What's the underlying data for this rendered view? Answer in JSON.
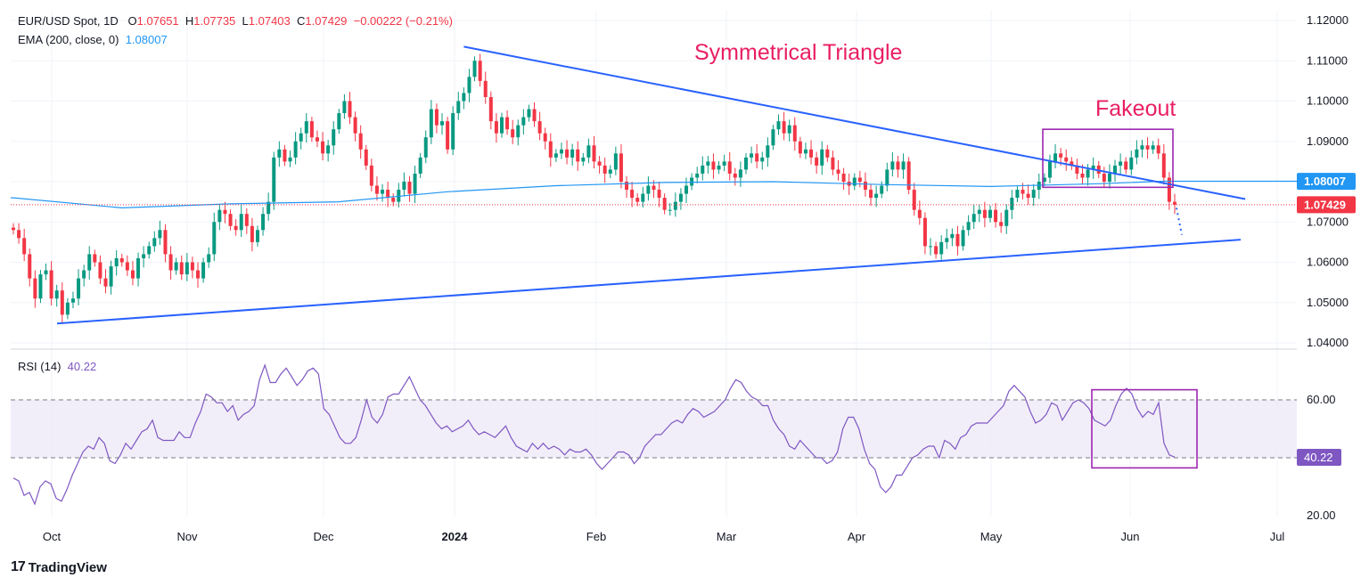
{
  "header": {
    "symbol": "EUR/USD Spot, 1D",
    "o_label": "O",
    "o": "1.07651",
    "h_label": "H",
    "h": "1.07735",
    "l_label": "L",
    "l": "1.07403",
    "c_label": "C",
    "c": "1.07429",
    "change": "−0.00222 (−0.21%)",
    "ema_label": "EMA (200, close, 0)",
    "ema_value": "1.08007",
    "rsi_label": "RSI (14)",
    "rsi_value": "40.22"
  },
  "annotations": {
    "triangle": "Symmetrical Triangle",
    "fakeout": "Fakeout"
  },
  "brand": {
    "name": "TradingView"
  },
  "colors": {
    "up": "#089981",
    "down": "#f23645",
    "ema": "#2196f3",
    "trendline": "#2962ff",
    "annotation": "#e91e63",
    "box": "#9c27b0",
    "rsi": "#7e57c2",
    "rsi_band": "#ede7f6"
  },
  "chart_data": [
    {
      "type": "candlestick",
      "title": "EUR/USD Spot, 1D",
      "ylim": [
        1.035,
        1.12
      ],
      "y_ticks": [
        "1.04000",
        "1.05000",
        "1.06000",
        "1.07000",
        "1.08000",
        "1.09000",
        "1.10000",
        "1.11000",
        "1.12000"
      ],
      "x_ticks": [
        "Oct",
        "Nov",
        "Dec",
        "2024",
        "Feb",
        "Mar",
        "Apr",
        "May",
        "Jun",
        "Jul"
      ],
      "price_tag": "1.07429",
      "ema_tag": "1.08007",
      "ema_anchors": [
        [
          0,
          1.076
        ],
        [
          20,
          1.0735
        ],
        [
          40,
          1.0745
        ],
        [
          60,
          1.075
        ],
        [
          80,
          1.0775
        ],
        [
          100,
          1.079
        ],
        [
          120,
          1.0798
        ],
        [
          140,
          1.08
        ],
        [
          160,
          1.0793
        ],
        [
          180,
          1.0788
        ],
        [
          200,
          1.0795
        ],
        [
          212,
          1.0801
        ]
      ],
      "trendlines": [
        {
          "name": "upper",
          "from": [
            83,
            1.1135
          ],
          "to": [
            227,
            1.0757
          ]
        },
        {
          "name": "lower",
          "from": [
            0,
            1.0448
          ],
          "to": [
            225,
            1.0656
          ]
        }
      ],
      "closes": [
        1.068,
        1.066,
        1.062,
        1.056,
        1.051,
        1.057,
        1.058,
        1.051,
        1.053,
        1.047,
        1.05,
        1.051,
        1.056,
        1.058,
        1.062,
        1.06,
        1.056,
        1.054,
        1.059,
        1.061,
        1.06,
        1.058,
        1.056,
        1.061,
        1.062,
        1.064,
        1.066,
        1.068,
        1.062,
        1.058,
        1.06,
        1.057,
        1.06,
        1.058,
        1.056,
        1.06,
        1.062,
        1.07,
        1.073,
        1.072,
        1.069,
        1.068,
        1.072,
        1.069,
        1.065,
        1.068,
        1.072,
        1.075,
        1.086,
        1.088,
        1.085,
        1.086,
        1.09,
        1.092,
        1.095,
        1.091,
        1.09,
        1.087,
        1.089,
        1.093,
        1.097,
        1.1,
        1.096,
        1.092,
        1.088,
        1.084,
        1.079,
        1.077,
        1.078,
        1.076,
        1.075,
        1.078,
        1.08,
        1.077,
        1.082,
        1.086,
        1.091,
        1.098,
        1.094,
        1.095,
        1.088,
        1.097,
        1.1,
        1.102,
        1.106,
        1.11,
        1.105,
        1.101,
        1.095,
        1.092,
        1.096,
        1.093,
        1.091,
        1.094,
        1.096,
        1.098,
        1.095,
        1.092,
        1.09,
        1.086,
        1.087,
        1.088,
        1.086,
        1.088,
        1.085,
        1.086,
        1.089,
        1.085,
        1.084,
        1.082,
        1.083,
        1.087,
        1.08,
        1.078,
        1.076,
        1.075,
        1.077,
        1.079,
        1.078,
        1.076,
        1.073,
        1.073,
        1.075,
        1.077,
        1.079,
        1.081,
        1.082,
        1.084,
        1.085,
        1.083,
        1.084,
        1.085,
        1.082,
        1.081,
        1.083,
        1.086,
        1.087,
        1.085,
        1.086,
        1.089,
        1.093,
        1.095,
        1.092,
        1.094,
        1.09,
        1.087,
        1.088,
        1.086,
        1.084,
        1.088,
        1.086,
        1.083,
        1.082,
        1.08,
        1.079,
        1.081,
        1.08,
        1.078,
        1.076,
        1.077,
        1.079,
        1.083,
        1.085,
        1.083,
        1.085,
        1.078,
        1.073,
        1.071,
        1.064,
        1.064,
        1.062,
        1.065,
        1.066,
        1.067,
        1.064,
        1.068,
        1.07,
        1.072,
        1.073,
        1.071,
        1.073,
        1.07,
        1.069,
        1.073,
        1.076,
        1.078,
        1.077,
        1.076,
        1.078,
        1.08,
        1.081,
        1.085,
        1.087,
        1.086,
        1.085,
        1.084,
        1.082,
        1.081,
        1.083,
        1.084,
        1.082,
        1.08,
        1.082,
        1.084,
        1.085,
        1.083,
        1.086,
        1.088,
        1.089,
        1.088,
        1.089,
        1.087,
        1.081,
        1.075,
        1.0743
      ]
    },
    {
      "type": "line",
      "title": "RSI (14)",
      "ylim": [
        20,
        80
      ],
      "y_ticks": [
        "20.00",
        "60.00"
      ],
      "band": [
        40,
        60
      ],
      "value_tag": "40.22",
      "values": [
        33,
        32,
        27,
        28,
        24,
        30,
        32,
        31,
        26,
        25,
        29,
        34,
        38,
        42,
        44,
        43,
        47,
        45,
        39,
        38,
        41,
        45,
        43,
        46,
        49,
        50,
        53,
        47,
        46,
        46,
        46,
        49,
        47,
        47,
        52,
        56,
        62,
        61,
        59,
        59,
        56,
        58,
        53,
        55,
        56,
        58,
        67,
        72,
        66,
        66,
        69,
        71,
        68,
        65,
        67,
        70,
        71,
        69,
        57,
        55,
        51,
        47,
        45,
        45,
        47,
        53,
        60,
        54,
        52,
        55,
        61,
        62,
        62,
        65,
        68,
        64,
        60,
        58,
        55,
        52,
        50,
        51,
        49,
        50,
        51,
        53,
        50,
        48,
        49,
        48,
        47,
        49,
        51,
        47,
        44,
        43,
        42,
        45,
        43,
        45,
        43,
        44,
        43,
        41,
        43,
        42,
        42,
        43,
        41,
        38,
        36,
        38,
        40,
        42,
        42,
        41,
        38,
        40,
        44,
        46,
        48,
        48,
        50,
        52,
        53,
        52,
        55,
        57,
        56,
        54,
        55,
        56,
        58,
        60,
        64,
        67,
        66,
        63,
        61,
        60,
        58,
        58,
        53,
        50,
        48,
        44,
        43,
        46,
        44,
        42,
        40,
        40,
        38,
        39,
        42,
        50,
        54,
        54,
        50,
        43,
        38,
        36,
        30,
        28,
        30,
        34,
        34,
        37,
        40,
        41,
        43,
        44,
        44,
        40,
        46,
        45,
        43,
        47,
        48,
        51,
        52,
        52,
        52,
        54,
        56,
        58,
        63,
        65,
        63,
        61,
        56,
        52,
        53,
        55,
        59,
        58,
        53,
        56,
        59,
        60,
        59,
        57,
        53,
        52,
        51,
        53,
        58,
        62,
        64,
        62,
        57,
        54,
        56,
        55,
        59,
        45,
        41,
        40.22
      ]
    }
  ]
}
